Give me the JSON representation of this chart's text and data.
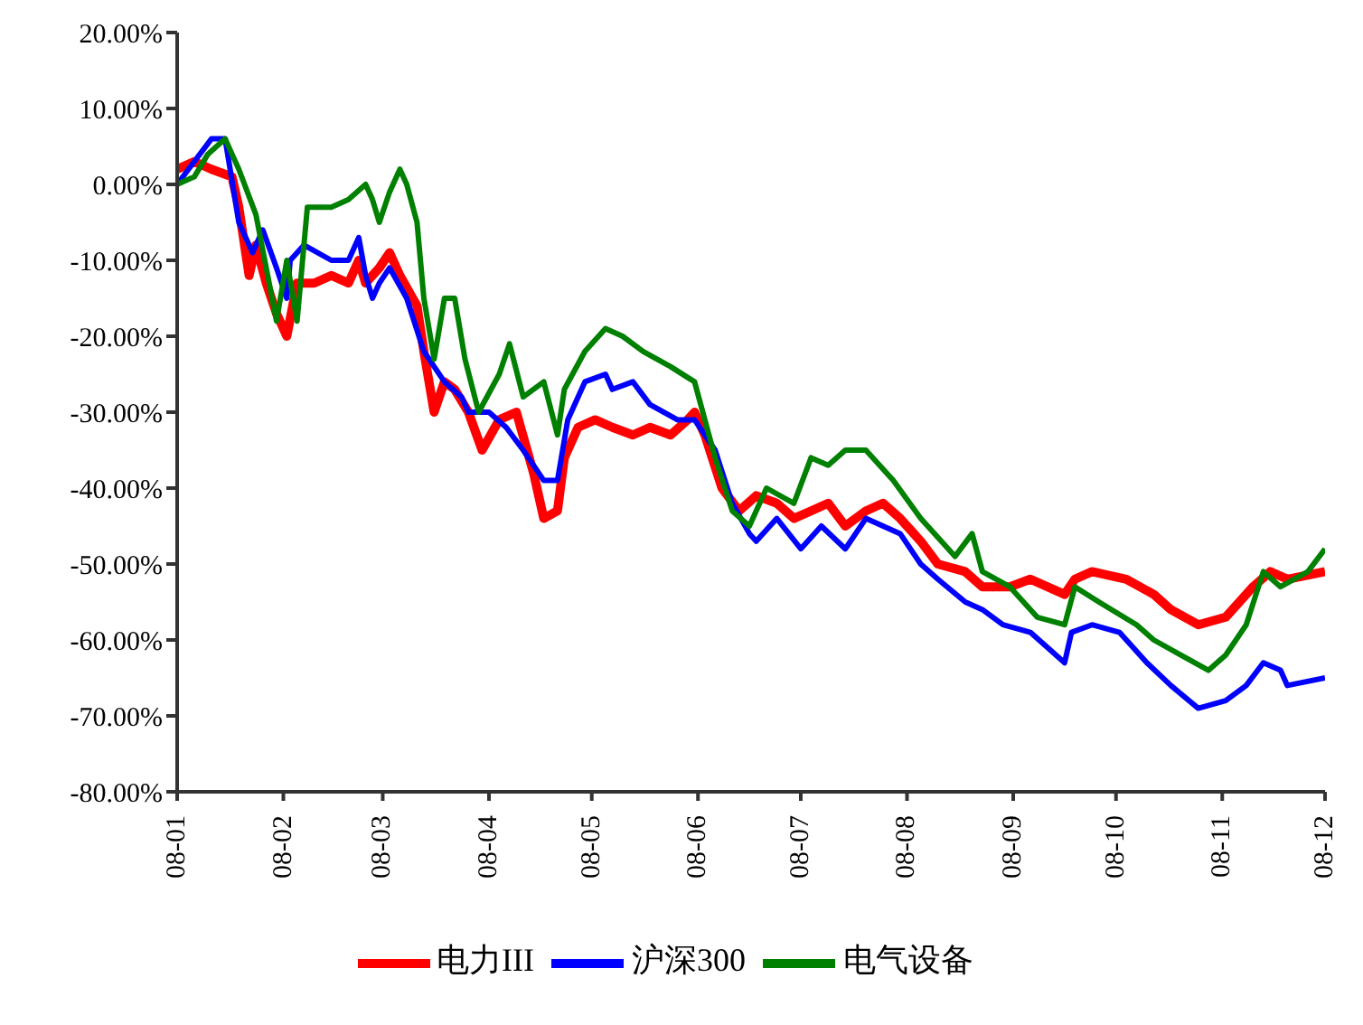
{
  "chart_data": {
    "type": "line",
    "xlim": [
      "2008-01",
      "2008-12"
    ],
    "xticks": [
      {
        "value": "2008-01",
        "label": "08-01"
      },
      {
        "value": "2008-02",
        "label": "08-02"
      },
      {
        "value": "2008-03",
        "label": "08-03"
      },
      {
        "value": "2008-04",
        "label": "08-04"
      },
      {
        "value": "2008-05",
        "label": "08-05"
      },
      {
        "value": "2008-06",
        "label": "08-06"
      },
      {
        "value": "2008-07",
        "label": "08-07"
      },
      {
        "value": "2008-08",
        "label": "08-08"
      },
      {
        "value": "2008-09",
        "label": "08-09"
      },
      {
        "value": "2008-10",
        "label": "08-10"
      },
      {
        "value": "2008-11",
        "label": "08-11"
      },
      {
        "value": "2008-12",
        "label": "08-12"
      }
    ],
    "ylim": [
      -80,
      20
    ],
    "yticks": [
      {
        "value": -80,
        "label": "-80.00%"
      },
      {
        "value": -70,
        "label": "-70.00%"
      },
      {
        "value": -60,
        "label": "-60.00%"
      },
      {
        "value": -50,
        "label": "-50.00%"
      },
      {
        "value": -40,
        "label": "-40.00%"
      },
      {
        "value": -30,
        "label": "-30.00%"
      },
      {
        "value": -20,
        "label": "-20.00%"
      },
      {
        "value": -10,
        "label": "-10.00%"
      },
      {
        "value": 0,
        "label": "0.00%"
      },
      {
        "value": 10,
        "label": "10.00%"
      },
      {
        "value": 20,
        "label": "20.00%"
      }
    ],
    "legend": "bottom",
    "marker": "none",
    "line_style": "solid",
    "series": [
      {
        "name": "电力III",
        "color": "#ff0000",
        "x": [
          "2008-01-01",
          "2008-01-06",
          "2008-01-11",
          "2008-01-17",
          "2008-01-19",
          "2008-01-22",
          "2008-01-24",
          "2008-01-27",
          "2008-01-30",
          "2008-02-02",
          "2008-02-05",
          "2008-02-10",
          "2008-02-15",
          "2008-02-20",
          "2008-02-23",
          "2008-02-25",
          "2008-02-29",
          "2008-03-03",
          "2008-03-06",
          "2008-03-11",
          "2008-03-13",
          "2008-03-16",
          "2008-03-19",
          "2008-03-22",
          "2008-03-26",
          "2008-03-30",
          "2008-04-04",
          "2008-04-09",
          "2008-04-14",
          "2008-04-17",
          "2008-04-21",
          "2008-04-23",
          "2008-04-27",
          "2008-05-02",
          "2008-05-07",
          "2008-05-13",
          "2008-05-18",
          "2008-05-24",
          "2008-05-29",
          "2008-05-31",
          "2008-06-03",
          "2008-06-08",
          "2008-06-13",
          "2008-06-18",
          "2008-06-24",
          "2008-06-29",
          "2008-07-04",
          "2008-07-09",
          "2008-07-14",
          "2008-07-20",
          "2008-07-25",
          "2008-07-30",
          "2008-08-05",
          "2008-08-10",
          "2008-08-18",
          "2008-08-23",
          "2008-08-31",
          "2008-09-06",
          "2008-09-16",
          "2008-09-19",
          "2008-09-24",
          "2008-10-04",
          "2008-10-12",
          "2008-10-17",
          "2008-10-25",
          "2008-11-02",
          "2008-11-10",
          "2008-11-15",
          "2008-11-20",
          "2008-12-01"
        ],
        "values": [
          2,
          3,
          2,
          1,
          -3,
          -12,
          -8,
          -13,
          -17,
          -20,
          -13,
          -13,
          -12,
          -13,
          -10,
          -13,
          -11,
          -9,
          -12,
          -16,
          -22,
          -30,
          -26,
          -27,
          -30,
          -35,
          -31,
          -30,
          -38,
          -44,
          -43,
          -36,
          -32,
          -31,
          -32,
          -33,
          -32,
          -33,
          -31,
          -30,
          -33,
          -40,
          -43,
          -41,
          -42,
          -44,
          -43,
          -42,
          -45,
          -43,
          -42,
          -44,
          -47,
          -50,
          -51,
          -53,
          -53,
          -52,
          -54,
          -52,
          -51,
          -52,
          -54,
          -56,
          -58,
          -57,
          -53,
          -51,
          -52,
          -51
        ]
      },
      {
        "name": "沪深300",
        "color": "#0000ff",
        "x": [
          "2008-01-01",
          "2008-01-06",
          "2008-01-11",
          "2008-01-15",
          "2008-01-19",
          "2008-01-23",
          "2008-01-26",
          "2008-01-30",
          "2008-02-02",
          "2008-02-03",
          "2008-02-07",
          "2008-02-15",
          "2008-02-20",
          "2008-02-23",
          "2008-02-25",
          "2008-02-27",
          "2008-02-29",
          "2008-03-03",
          "2008-03-08",
          "2008-03-13",
          "2008-03-19",
          "2008-03-24",
          "2008-03-26",
          "2008-04-01",
          "2008-04-06",
          "2008-04-11",
          "2008-04-17",
          "2008-04-21",
          "2008-04-24",
          "2008-04-29",
          "2008-05-05",
          "2008-05-07",
          "2008-05-13",
          "2008-05-18",
          "2008-05-26",
          "2008-05-31",
          "2008-06-06",
          "2008-06-11",
          "2008-06-16",
          "2008-06-18",
          "2008-06-24",
          "2008-07-01",
          "2008-07-07",
          "2008-07-14",
          "2008-07-20",
          "2008-07-25",
          "2008-07-30",
          "2008-08-05",
          "2008-08-10",
          "2008-08-18",
          "2008-08-23",
          "2008-08-29",
          "2008-09-06",
          "2008-09-16",
          "2008-09-18",
          "2008-09-24",
          "2008-10-02",
          "2008-10-10",
          "2008-10-17",
          "2008-10-25",
          "2008-11-02",
          "2008-11-08",
          "2008-11-13",
          "2008-11-18",
          "2008-11-20",
          "2008-12-01"
        ],
        "values": [
          0,
          3,
          6,
          6,
          -5,
          -9,
          -6,
          -11,
          -15,
          -10,
          -8,
          -10,
          -10,
          -7,
          -12,
          -15,
          -13,
          -11,
          -15,
          -22,
          -26,
          -28,
          -30,
          -30,
          -32,
          -35,
          -39,
          -39,
          -31,
          -26,
          -25,
          -27,
          -26,
          -29,
          -31,
          -31,
          -35,
          -42,
          -46,
          -47,
          -44,
          -48,
          -45,
          -48,
          -44,
          -45,
          -46,
          -50,
          -52,
          -55,
          -56,
          -58,
          -59,
          -63,
          -59,
          -58,
          -59,
          -63,
          -66,
          -69,
          -68,
          -66,
          -63,
          -64,
          -66,
          -65
        ]
      },
      {
        "name": "电气设备",
        "color": "#008000",
        "x": [
          "2008-01-01",
          "2008-01-06",
          "2008-01-10",
          "2008-01-15",
          "2008-01-19",
          "2008-01-24",
          "2008-01-30",
          "2008-02-02",
          "2008-02-05",
          "2008-02-08",
          "2008-02-15",
          "2008-02-20",
          "2008-02-25",
          "2008-02-27",
          "2008-02-29",
          "2008-03-03",
          "2008-03-06",
          "2008-03-08",
          "2008-03-11",
          "2008-03-13",
          "2008-03-16",
          "2008-03-19",
          "2008-03-22",
          "2008-03-25",
          "2008-03-29",
          "2008-04-04",
          "2008-04-07",
          "2008-04-11",
          "2008-04-17",
          "2008-04-21",
          "2008-04-23",
          "2008-04-29",
          "2008-05-05",
          "2008-05-10",
          "2008-05-16",
          "2008-05-24",
          "2008-05-31",
          "2008-06-06",
          "2008-06-11",
          "2008-06-16",
          "2008-06-21",
          "2008-06-29",
          "2008-07-04",
          "2008-07-09",
          "2008-07-14",
          "2008-07-20",
          "2008-07-28",
          "2008-08-05",
          "2008-08-15",
          "2008-08-20",
          "2008-08-23",
          "2008-08-31",
          "2008-09-08",
          "2008-09-16",
          "2008-09-19",
          "2008-09-26",
          "2008-10-07",
          "2008-10-12",
          "2008-10-20",
          "2008-10-28",
          "2008-11-02",
          "2008-11-08",
          "2008-11-13",
          "2008-11-18",
          "2008-11-26",
          "2008-12-01"
        ],
        "values": [
          0,
          1,
          4,
          6,
          2,
          -4,
          -18,
          -10,
          -18,
          -3,
          -3,
          -2,
          0,
          -2,
          -5,
          -1,
          2,
          0,
          -5,
          -15,
          -23,
          -15,
          -15,
          -23,
          -30,
          -25,
          -21,
          -28,
          -26,
          -33,
          -27,
          -22,
          -19,
          -20,
          -22,
          -24,
          -26,
          -36,
          -43,
          -45,
          -40,
          -42,
          -36,
          -37,
          -35,
          -35,
          -39,
          -44,
          -49,
          -46,
          -51,
          -53,
          -57,
          -58,
          -53,
          -55,
          -58,
          -60,
          -62,
          -64,
          -62,
          -58,
          -51,
          -53,
          -51,
          -48
        ]
      }
    ]
  }
}
